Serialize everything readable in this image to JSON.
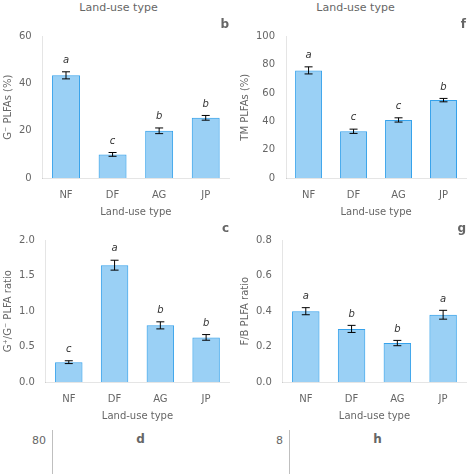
{
  "chart_data": [
    {
      "type": "bar",
      "title": "b",
      "ylabel": "G⁻ PLFAs (%)",
      "xlabel": "Land-use type",
      "categories": [
        "NF",
        "DF",
        "AG",
        "JP"
      ],
      "values": [
        43.5,
        10.0,
        20.0,
        25.5
      ],
      "errors": [
        1.5,
        0.8,
        1.2,
        1.0
      ],
      "annotations": [
        {
          "category": "NF",
          "text": "a"
        },
        {
          "category": "DF",
          "text": "c"
        },
        {
          "category": "AG",
          "text": "b"
        },
        {
          "category": "JP",
          "text": "b"
        }
      ],
      "ylim": [
        0,
        60
      ],
      "yticks": [
        0,
        20,
        40,
        60
      ],
      "grid": false
    },
    {
      "type": "bar",
      "title": "f",
      "ylabel": "TM PLFAs (%)",
      "xlabel": "Land-use type",
      "categories": [
        "NF",
        "DF",
        "AG",
        "JP"
      ],
      "values": [
        76.0,
        33.0,
        41.0,
        55.0
      ],
      "errors": [
        2.5,
        1.5,
        1.5,
        1.2
      ],
      "annotations": [
        {
          "category": "NF",
          "text": "a"
        },
        {
          "category": "DF",
          "text": "c"
        },
        {
          "category": "AG",
          "text": "c"
        },
        {
          "category": "JP",
          "text": "b"
        }
      ],
      "ylim": [
        0,
        100
      ],
      "yticks": [
        0,
        20,
        40,
        60,
        80,
        100
      ],
      "grid": false
    },
    {
      "type": "bar",
      "title": "c",
      "ylabel": "G⁺/G⁻ PLFA ratio",
      "xlabel": "Land-use type",
      "categories": [
        "NF",
        "DF",
        "AG",
        "JP"
      ],
      "values": [
        0.28,
        1.65,
        0.8,
        0.63
      ],
      "errors": [
        0.02,
        0.07,
        0.05,
        0.04
      ],
      "annotations": [
        {
          "category": "NF",
          "text": "c"
        },
        {
          "category": "DF",
          "text": "a"
        },
        {
          "category": "AG",
          "text": "b"
        },
        {
          "category": "JP",
          "text": "b"
        }
      ],
      "ylim": [
        0.0,
        2.0
      ],
      "yticks": [
        {
          "value": 0,
          "label": "0.0"
        },
        0.5,
        {
          "value": 1,
          "label": "1.0"
        },
        1.5,
        {
          "value": 2,
          "label": "2.0"
        }
      ],
      "grid": false
    },
    {
      "type": "bar",
      "title": "g",
      "ylabel": "F/B PLFA ratio",
      "xlabel": "Land-use type",
      "categories": [
        "NF",
        "DF",
        "AG",
        "JP"
      ],
      "values": [
        0.4,
        0.3,
        0.22,
        0.38
      ],
      "errors": [
        0.02,
        0.02,
        0.015,
        0.025
      ],
      "annotations": [
        {
          "category": "NF",
          "text": "a"
        },
        {
          "category": "DF",
          "text": "b"
        },
        {
          "category": "AG",
          "text": "b"
        },
        {
          "category": "JP",
          "text": "a"
        }
      ],
      "ylim": [
        0.0,
        0.8
      ],
      "yticks": [
        {
          "value": 0,
          "label": "0.0"
        },
        0.2,
        0.4,
        0.6,
        0.8
      ],
      "grid": false
    }
  ],
  "annotations": [
    {
      "text": "Land-use type"
    },
    {
      "text": "Land-use type"
    },
    {
      "text": "80"
    },
    {
      "text": "d"
    },
    {
      "text": "8"
    },
    {
      "text": "h"
    }
  ]
}
